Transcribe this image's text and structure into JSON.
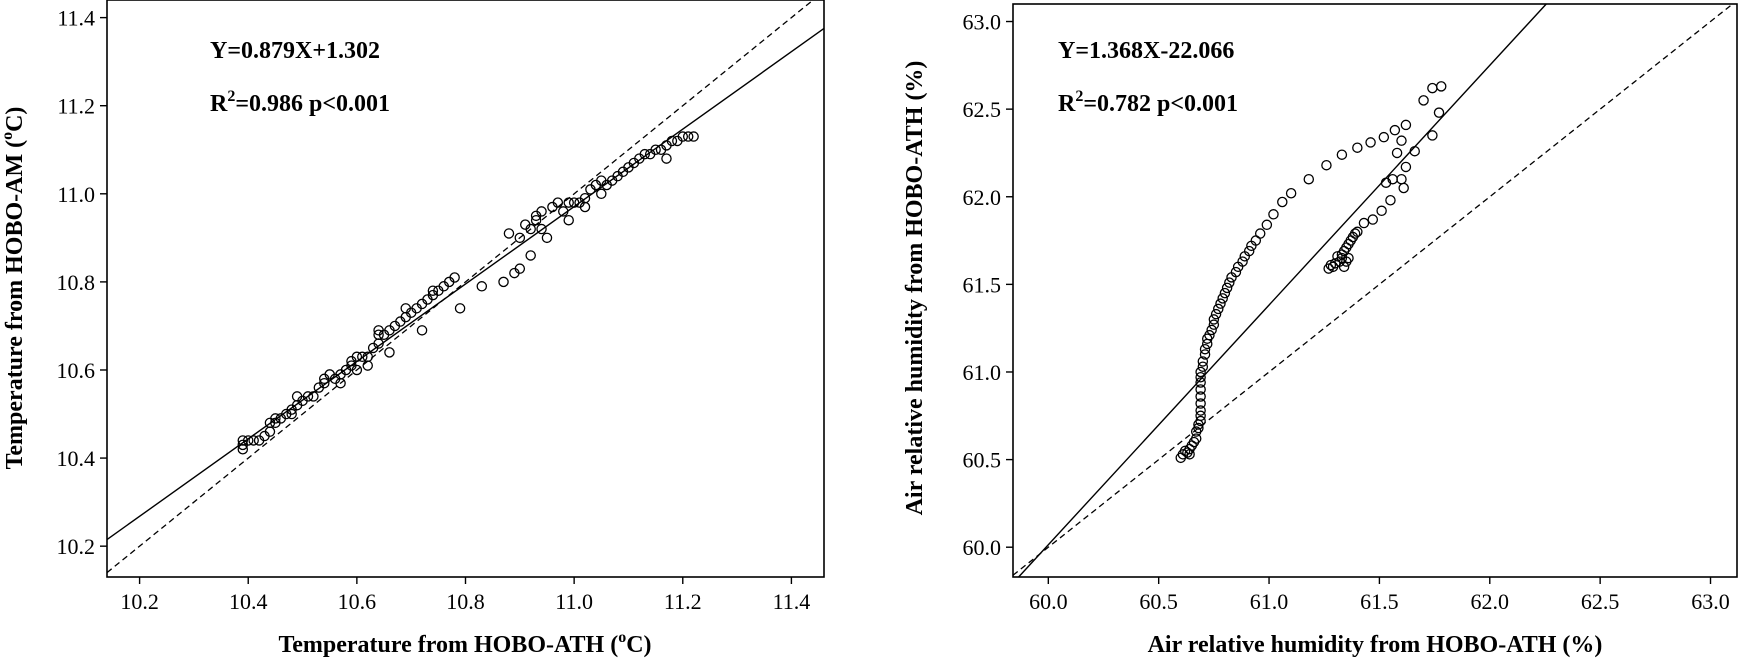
{
  "chart_data": [
    {
      "type": "scatter",
      "id": "temperature",
      "xlabel_prefix": "Temperature from HOBO-ATH (",
      "xlabel_sup": "o",
      "xlabel_suffix": "C)",
      "ylabel_prefix": "Temperature from HOBO-AM (",
      "ylabel_sup": "o",
      "ylabel_suffix": "C)",
      "xlim": [
        10.14,
        11.46
      ],
      "ylim": [
        10.13,
        11.44
      ],
      "xticks": [
        10.2,
        10.4,
        10.6,
        10.8,
        11.0,
        11.2,
        11.4
      ],
      "yticks": [
        10.2,
        10.4,
        10.6,
        10.8,
        11.0,
        11.2,
        11.4
      ],
      "tick_decimals": 1,
      "equation": "Y=0.879X+1.302",
      "r2_prefix": "R",
      "r2_sup": "2",
      "r2_suffix": "=0.986 p<0.001",
      "fit": {
        "slope": 0.879,
        "intercept": 1.302
      },
      "identity_line": true,
      "points": [
        [
          10.39,
          10.42
        ],
        [
          10.39,
          10.43
        ],
        [
          10.39,
          10.44
        ],
        [
          10.4,
          10.44
        ],
        [
          10.41,
          10.44
        ],
        [
          10.42,
          10.44
        ],
        [
          10.43,
          10.45
        ],
        [
          10.44,
          10.46
        ],
        [
          10.44,
          10.48
        ],
        [
          10.45,
          10.48
        ],
        [
          10.45,
          10.49
        ],
        [
          10.46,
          10.49
        ],
        [
          10.47,
          10.5
        ],
        [
          10.48,
          10.5
        ],
        [
          10.48,
          10.51
        ],
        [
          10.49,
          10.52
        ],
        [
          10.49,
          10.54
        ],
        [
          10.5,
          10.53
        ],
        [
          10.51,
          10.54
        ],
        [
          10.52,
          10.54
        ],
        [
          10.53,
          10.56
        ],
        [
          10.54,
          10.58
        ],
        [
          10.54,
          10.57
        ],
        [
          10.55,
          10.59
        ],
        [
          10.56,
          10.58
        ],
        [
          10.57,
          10.57
        ],
        [
          10.57,
          10.59
        ],
        [
          10.58,
          10.6
        ],
        [
          10.59,
          10.61
        ],
        [
          10.59,
          10.62
        ],
        [
          10.6,
          10.63
        ],
        [
          10.6,
          10.6
        ],
        [
          10.61,
          10.63
        ],
        [
          10.62,
          10.61
        ],
        [
          10.62,
          10.63
        ],
        [
          10.63,
          10.65
        ],
        [
          10.64,
          10.66
        ],
        [
          10.64,
          10.68
        ],
        [
          10.64,
          10.69
        ],
        [
          10.65,
          10.68
        ],
        [
          10.66,
          10.69
        ],
        [
          10.66,
          10.64
        ],
        [
          10.67,
          10.7
        ],
        [
          10.68,
          10.71
        ],
        [
          10.69,
          10.72
        ],
        [
          10.69,
          10.74
        ],
        [
          10.7,
          10.73
        ],
        [
          10.71,
          10.74
        ],
        [
          10.72,
          10.75
        ],
        [
          10.72,
          10.69
        ],
        [
          10.73,
          10.76
        ],
        [
          10.74,
          10.77
        ],
        [
          10.74,
          10.78
        ],
        [
          10.75,
          10.78
        ],
        [
          10.76,
          10.79
        ],
        [
          10.77,
          10.8
        ],
        [
          10.78,
          10.81
        ],
        [
          10.79,
          10.74
        ],
        [
          10.83,
          10.79
        ],
        [
          10.87,
          10.8
        ],
        [
          10.88,
          10.91
        ],
        [
          10.89,
          10.82
        ],
        [
          10.9,
          10.9
        ],
        [
          10.9,
          10.83
        ],
        [
          10.91,
          10.93
        ],
        [
          10.92,
          10.92
        ],
        [
          10.92,
          10.86
        ],
        [
          10.93,
          10.94
        ],
        [
          10.93,
          10.95
        ],
        [
          10.94,
          10.96
        ],
        [
          10.94,
          10.92
        ],
        [
          10.95,
          10.9
        ],
        [
          10.96,
          10.97
        ],
        [
          10.97,
          10.98
        ],
        [
          10.98,
          10.96
        ],
        [
          10.99,
          10.98
        ],
        [
          10.99,
          10.94
        ],
        [
          11.0,
          10.98
        ],
        [
          11.01,
          10.98
        ],
        [
          11.02,
          10.99
        ],
        [
          11.02,
          10.97
        ],
        [
          11.03,
          11.01
        ],
        [
          11.04,
          11.02
        ],
        [
          11.05,
          11.03
        ],
        [
          11.05,
          11.0
        ],
        [
          11.06,
          11.02
        ],
        [
          11.07,
          11.03
        ],
        [
          11.08,
          11.04
        ],
        [
          11.09,
          11.05
        ],
        [
          11.1,
          11.06
        ],
        [
          11.11,
          11.07
        ],
        [
          11.12,
          11.08
        ],
        [
          11.13,
          11.09
        ],
        [
          11.14,
          11.09
        ],
        [
          11.15,
          11.1
        ],
        [
          11.16,
          11.1
        ],
        [
          11.17,
          11.11
        ],
        [
          11.17,
          11.08
        ],
        [
          11.18,
          11.12
        ],
        [
          11.19,
          11.12
        ],
        [
          11.2,
          11.13
        ],
        [
          11.21,
          11.13
        ],
        [
          11.22,
          11.13
        ]
      ]
    },
    {
      "type": "scatter",
      "id": "humidity",
      "xlabel": "Air relative humidity from HOBO-ATH (%)",
      "ylabel": "Air relative humidity from HOBO-ATH (%)",
      "xlim": [
        59.84,
        63.12
      ],
      "ylim": [
        59.83,
        63.1
      ],
      "xticks": [
        60.0,
        60.5,
        61.0,
        61.5,
        62.0,
        62.5,
        63.0
      ],
      "yticks": [
        60.0,
        60.5,
        61.0,
        61.5,
        62.0,
        62.5,
        63.0
      ],
      "tick_decimals": 1,
      "equation": "Y=1.368X-22.066",
      "r2_prefix": "R",
      "r2_sup": "2",
      "r2_suffix": "=0.782 p<0.001",
      "fit": {
        "slope": 1.368,
        "intercept": -22.066
      },
      "identity_line": true,
      "points": [
        [
          60.6,
          60.51
        ],
        [
          60.61,
          60.53
        ],
        [
          60.62,
          60.55
        ],
        [
          60.63,
          60.54
        ],
        [
          60.64,
          60.56
        ],
        [
          60.64,
          60.53
        ],
        [
          60.65,
          60.58
        ],
        [
          60.66,
          60.6
        ],
        [
          60.67,
          60.62
        ],
        [
          60.67,
          60.66
        ],
        [
          60.68,
          60.68
        ],
        [
          60.68,
          60.7
        ],
        [
          60.69,
          60.72
        ],
        [
          60.69,
          60.75
        ],
        [
          60.69,
          60.78
        ],
        [
          60.69,
          60.82
        ],
        [
          60.69,
          60.86
        ],
        [
          60.69,
          60.9
        ],
        [
          60.69,
          60.94
        ],
        [
          60.69,
          60.97
        ],
        [
          60.69,
          61.0
        ],
        [
          60.7,
          61.03
        ],
        [
          60.7,
          61.06
        ],
        [
          60.71,
          61.1
        ],
        [
          60.71,
          61.13
        ],
        [
          60.72,
          61.16
        ],
        [
          60.72,
          61.19
        ],
        [
          60.73,
          61.21
        ],
        [
          60.74,
          61.24
        ],
        [
          60.75,
          61.27
        ],
        [
          60.75,
          61.3
        ],
        [
          60.76,
          61.33
        ],
        [
          60.77,
          61.36
        ],
        [
          60.78,
          61.39
        ],
        [
          60.79,
          61.42
        ],
        [
          60.8,
          61.45
        ],
        [
          60.81,
          61.48
        ],
        [
          60.82,
          61.51
        ],
        [
          60.83,
          61.54
        ],
        [
          60.85,
          61.57
        ],
        [
          60.86,
          61.6
        ],
        [
          60.88,
          61.63
        ],
        [
          60.89,
          61.66
        ],
        [
          60.91,
          61.69
        ],
        [
          60.92,
          61.72
        ],
        [
          60.94,
          61.75
        ],
        [
          60.96,
          61.79
        ],
        [
          60.99,
          61.84
        ],
        [
          61.02,
          61.9
        ],
        [
          61.06,
          61.97
        ],
        [
          61.1,
          62.02
        ],
        [
          61.18,
          62.1
        ],
        [
          61.26,
          62.18
        ],
        [
          61.33,
          62.24
        ],
        [
          61.4,
          62.28
        ],
        [
          61.46,
          62.31
        ],
        [
          61.52,
          62.34
        ],
        [
          61.57,
          62.38
        ],
        [
          61.62,
          62.41
        ],
        [
          61.7,
          62.55
        ],
        [
          61.74,
          62.62
        ],
        [
          61.78,
          62.63
        ],
        [
          61.77,
          62.48
        ],
        [
          61.74,
          62.35
        ],
        [
          61.66,
          62.26
        ],
        [
          61.62,
          62.17
        ],
        [
          61.58,
          62.25
        ],
        [
          61.6,
          62.32
        ],
        [
          61.61,
          62.05
        ],
        [
          61.6,
          62.1
        ],
        [
          61.56,
          62.1
        ],
        [
          61.53,
          62.08
        ],
        [
          61.55,
          61.98
        ],
        [
          61.51,
          61.92
        ],
        [
          61.47,
          61.87
        ],
        [
          61.43,
          61.85
        ],
        [
          61.4,
          61.8
        ],
        [
          61.39,
          61.79
        ],
        [
          61.38,
          61.77
        ],
        [
          61.37,
          61.75
        ],
        [
          61.36,
          61.73
        ],
        [
          61.35,
          61.71
        ],
        [
          61.34,
          61.69
        ],
        [
          61.33,
          61.67
        ],
        [
          61.33,
          61.65
        ],
        [
          61.32,
          61.63
        ],
        [
          61.31,
          61.66
        ],
        [
          61.3,
          61.62
        ],
        [
          61.29,
          61.6
        ],
        [
          61.28,
          61.61
        ],
        [
          61.27,
          61.59
        ],
        [
          61.35,
          61.63
        ],
        [
          61.36,
          61.65
        ],
        [
          61.34,
          61.6
        ]
      ]
    }
  ]
}
